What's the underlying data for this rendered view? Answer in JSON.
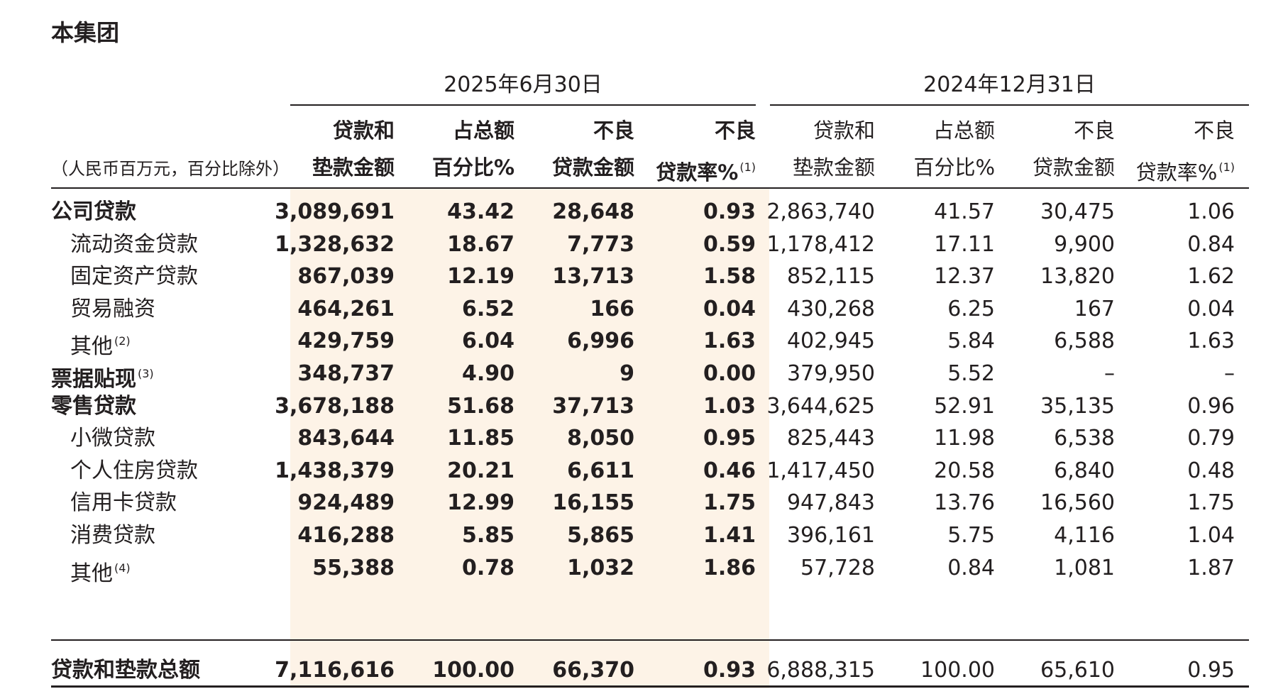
{
  "section_title": "本集团",
  "unit_note": "（人民币百万元，百分比除外）",
  "periods": {
    "current": "2025年6月30日",
    "previous": "2024年12月31日"
  },
  "headers": {
    "loan_amount": [
      "贷款和",
      "垫款金额"
    ],
    "pct_total": [
      "占总额",
      "百分比%"
    ],
    "npl_amount": [
      "不良",
      "贷款金额"
    ],
    "npl_ratio": [
      "不良",
      "贷款率%"
    ],
    "npl_ratio_note": "(1)"
  },
  "rows": [
    {
      "label": "公司贷款",
      "note": "",
      "level": "main",
      "cur": [
        "3,089,691",
        "43.42",
        "28,648",
        "0.93"
      ],
      "prev": [
        "2,863,740",
        "41.57",
        "30,475",
        "1.06"
      ]
    },
    {
      "label": "流动资金贷款",
      "note": "",
      "level": "sub",
      "cur": [
        "1,328,632",
        "18.67",
        "7,773",
        "0.59"
      ],
      "prev": [
        "1,178,412",
        "17.11",
        "9,900",
        "0.84"
      ]
    },
    {
      "label": "固定资产贷款",
      "note": "",
      "level": "sub",
      "cur": [
        "867,039",
        "12.19",
        "13,713",
        "1.58"
      ],
      "prev": [
        "852,115",
        "12.37",
        "13,820",
        "1.62"
      ]
    },
    {
      "label": "贸易融资",
      "note": "",
      "level": "sub",
      "cur": [
        "464,261",
        "6.52",
        "166",
        "0.04"
      ],
      "prev": [
        "430,268",
        "6.25",
        "167",
        "0.04"
      ]
    },
    {
      "label": "其他",
      "note": "(2)",
      "level": "sub",
      "cur": [
        "429,759",
        "6.04",
        "6,996",
        "1.63"
      ],
      "prev": [
        "402,945",
        "5.84",
        "6,588",
        "1.63"
      ]
    },
    {
      "label": "票据贴现",
      "note": "(3)",
      "level": "main",
      "cur": [
        "348,737",
        "4.90",
        "9",
        "0.00"
      ],
      "prev": [
        "379,950",
        "5.52",
        "–",
        "–"
      ]
    },
    {
      "label": "零售贷款",
      "note": "",
      "level": "main",
      "cur": [
        "3,678,188",
        "51.68",
        "37,713",
        "1.03"
      ],
      "prev": [
        "3,644,625",
        "52.91",
        "35,135",
        "0.96"
      ]
    },
    {
      "label": "小微贷款",
      "note": "",
      "level": "sub",
      "cur": [
        "843,644",
        "11.85",
        "8,050",
        "0.95"
      ],
      "prev": [
        "825,443",
        "11.98",
        "6,538",
        "0.79"
      ]
    },
    {
      "label": "个人住房贷款",
      "note": "",
      "level": "sub",
      "cur": [
        "1,438,379",
        "20.21",
        "6,611",
        "0.46"
      ],
      "prev": [
        "1,417,450",
        "20.58",
        "6,840",
        "0.48"
      ]
    },
    {
      "label": "信用卡贷款",
      "note": "",
      "level": "sub",
      "cur": [
        "924,489",
        "12.99",
        "16,155",
        "1.75"
      ],
      "prev": [
        "947,843",
        "13.76",
        "16,560",
        "1.75"
      ]
    },
    {
      "label": "消费贷款",
      "note": "",
      "level": "sub",
      "cur": [
        "416,288",
        "5.85",
        "5,865",
        "1.41"
      ],
      "prev": [
        "396,161",
        "5.75",
        "4,116",
        "1.04"
      ]
    },
    {
      "label": "其他",
      "note": "(4)",
      "level": "sub",
      "cur": [
        "55,388",
        "0.78",
        "1,032",
        "1.86"
      ],
      "prev": [
        "57,728",
        "0.84",
        "1,081",
        "1.87"
      ]
    }
  ],
  "total_row": {
    "label": "贷款和垫款总额",
    "cur": [
      "7,116,616",
      "100.00",
      "66,370",
      "0.93"
    ],
    "prev": [
      "6,888,315",
      "100.00",
      "65,610",
      "0.95"
    ]
  }
}
